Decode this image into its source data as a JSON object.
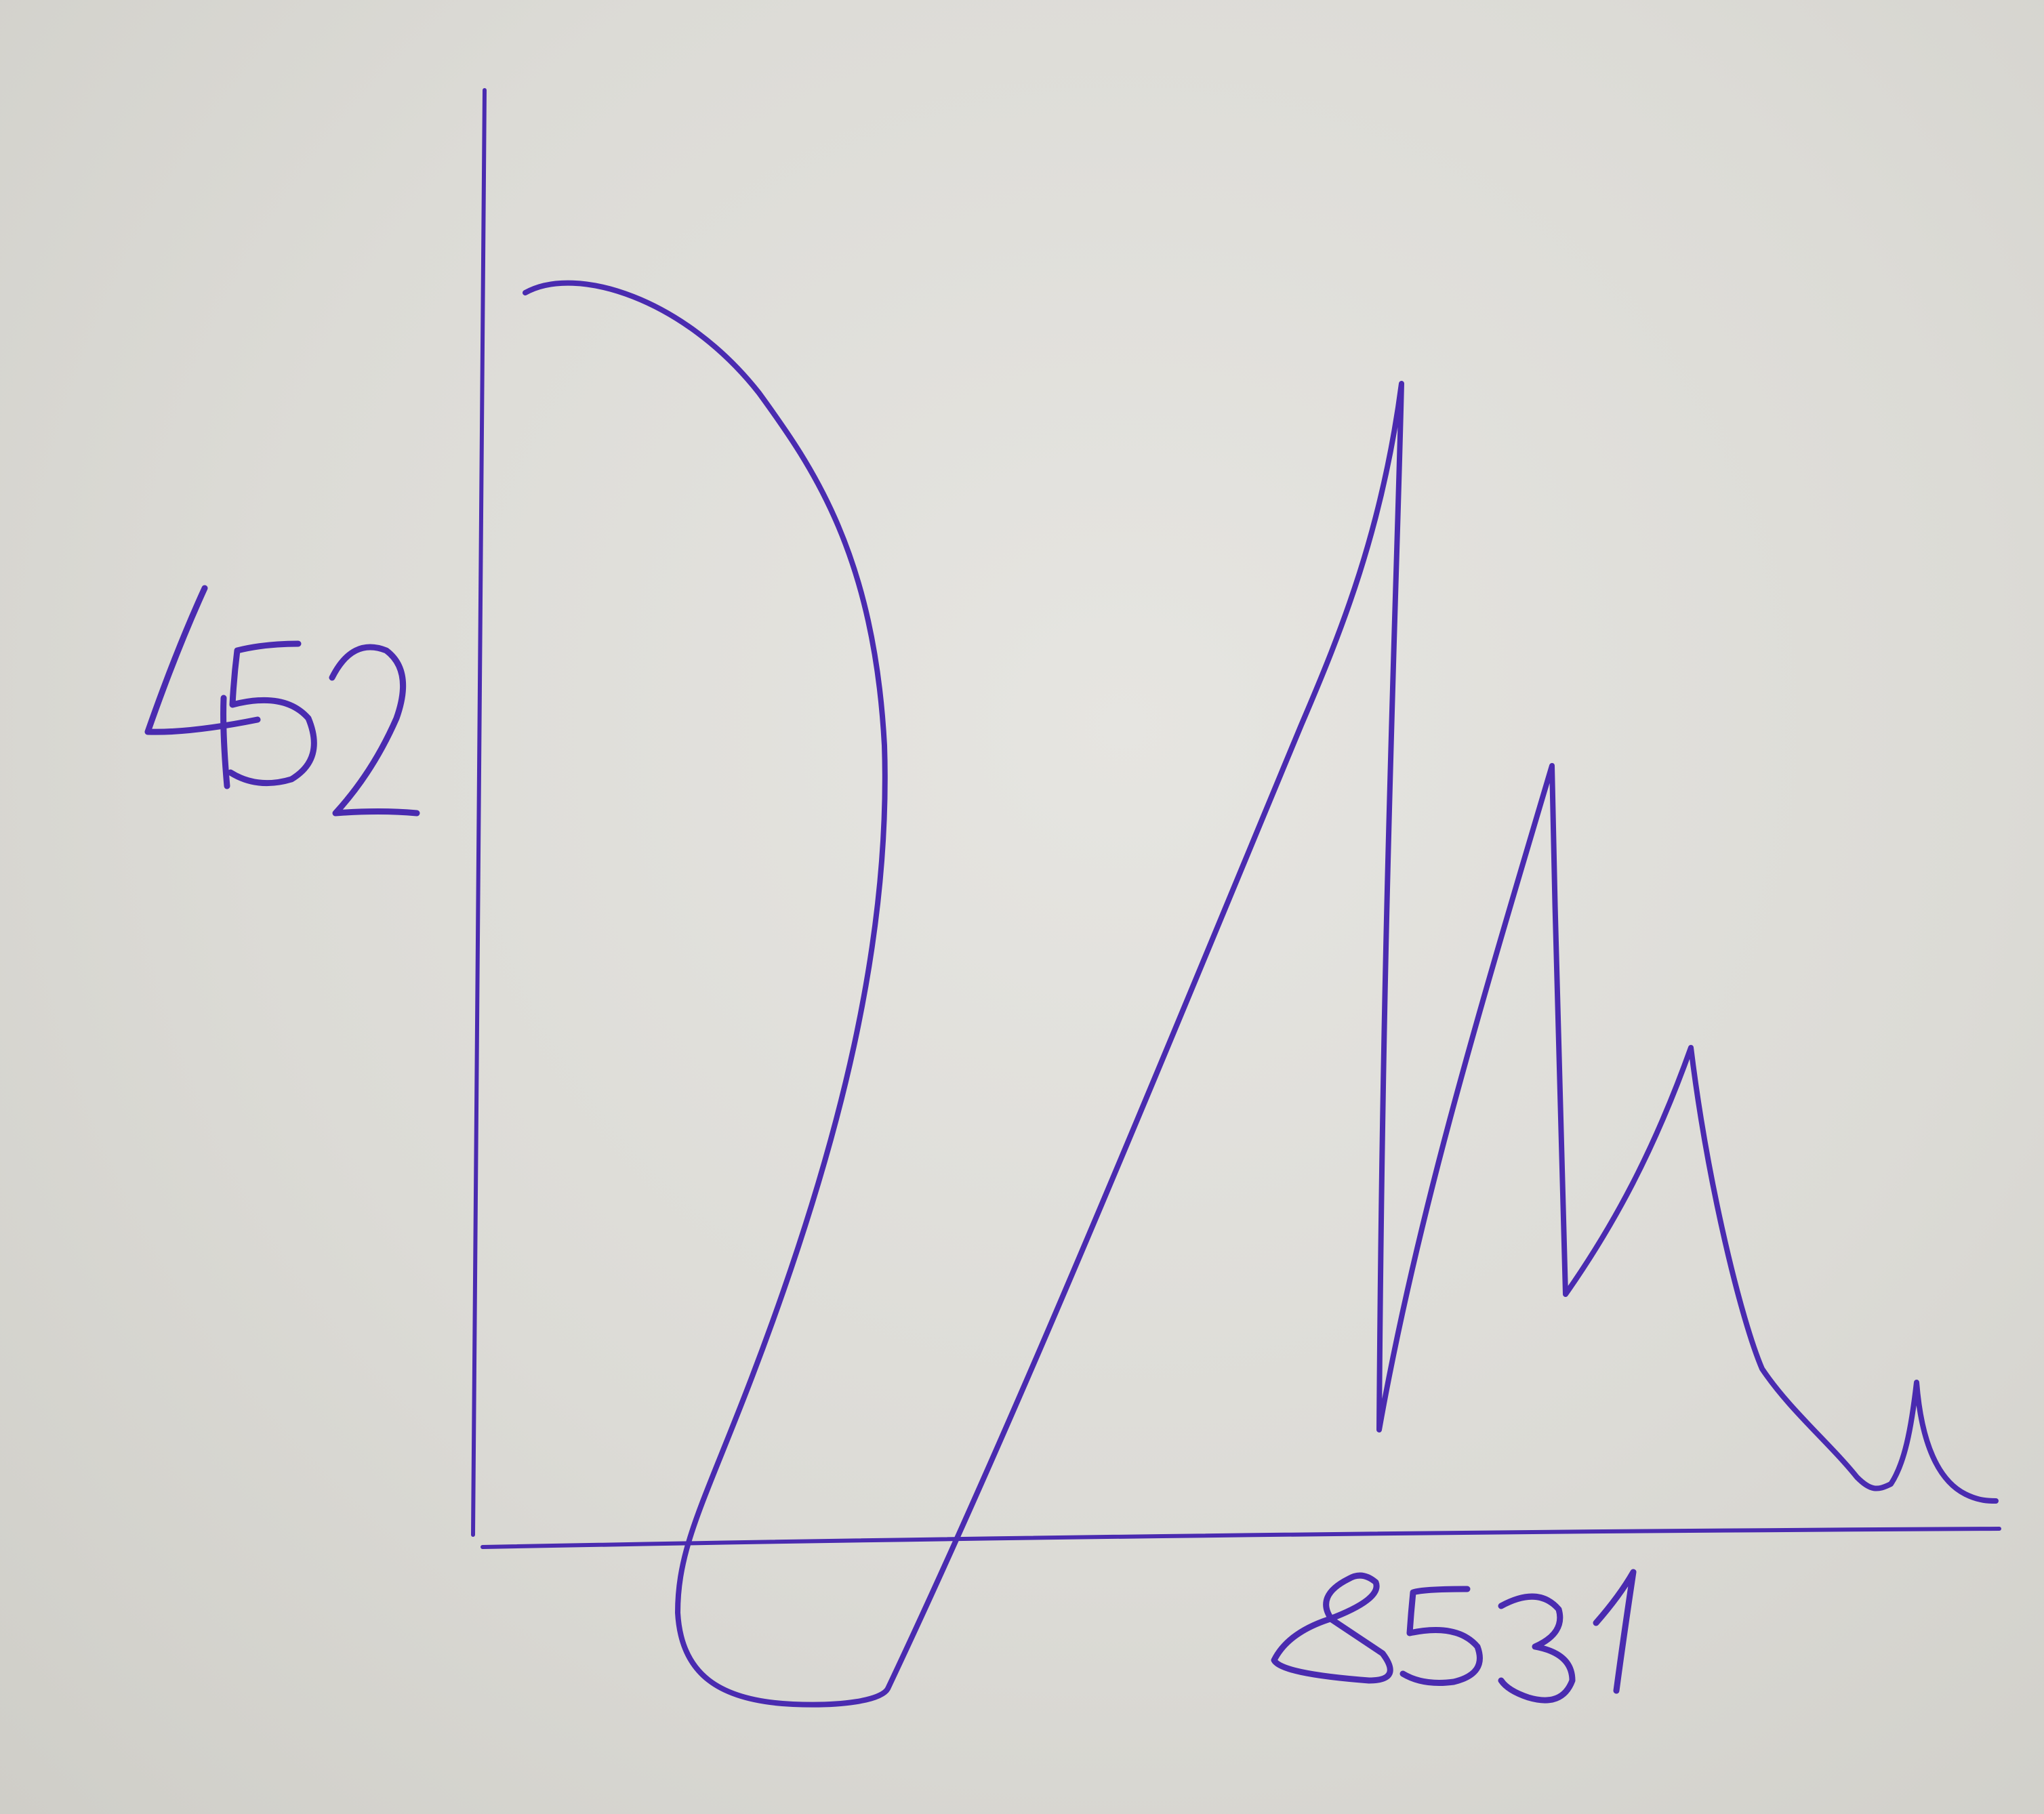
{
  "chart_data": {
    "type": "line",
    "style": "hand-drawn sketch on paper",
    "ink_color": "#4a2bb0",
    "paper_color": "#dcdbd6",
    "grid": false,
    "legend": "none",
    "y_label": "452",
    "x_label": "8531",
    "series": [
      {
        "values": []
      }
    ]
  }
}
